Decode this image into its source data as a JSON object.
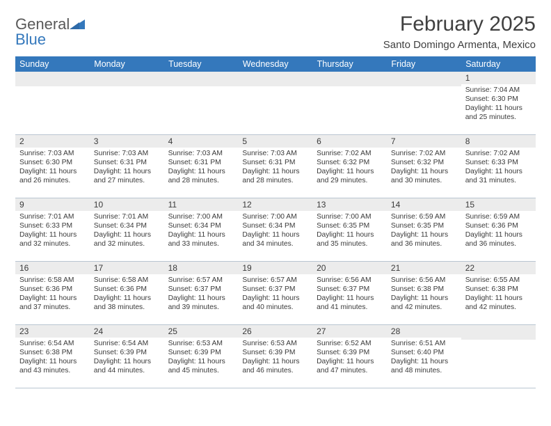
{
  "brand": {
    "word1": "General",
    "word2": "Blue"
  },
  "header": {
    "title": "February 2025",
    "location": "Santo Domingo Armenta, Mexico"
  },
  "colors": {
    "header_bg": "#3478bc",
    "header_fg": "#ffffff",
    "daynum_bg": "#ececec",
    "border": "#b9c5d1",
    "text": "#3a3a3a",
    "brand_gray": "#595959",
    "brand_blue": "#3478bc"
  },
  "weekdays": [
    "Sunday",
    "Monday",
    "Tuesday",
    "Wednesday",
    "Thursday",
    "Friday",
    "Saturday"
  ],
  "grid": [
    [
      null,
      null,
      null,
      null,
      null,
      null,
      {
        "n": "1",
        "sr": "7:04 AM",
        "ss": "6:30 PM",
        "dl": "11 hours and 25 minutes."
      }
    ],
    [
      {
        "n": "2",
        "sr": "7:03 AM",
        "ss": "6:30 PM",
        "dl": "11 hours and 26 minutes."
      },
      {
        "n": "3",
        "sr": "7:03 AM",
        "ss": "6:31 PM",
        "dl": "11 hours and 27 minutes."
      },
      {
        "n": "4",
        "sr": "7:03 AM",
        "ss": "6:31 PM",
        "dl": "11 hours and 28 minutes."
      },
      {
        "n": "5",
        "sr": "7:03 AM",
        "ss": "6:31 PM",
        "dl": "11 hours and 28 minutes."
      },
      {
        "n": "6",
        "sr": "7:02 AM",
        "ss": "6:32 PM",
        "dl": "11 hours and 29 minutes."
      },
      {
        "n": "7",
        "sr": "7:02 AM",
        "ss": "6:32 PM",
        "dl": "11 hours and 30 minutes."
      },
      {
        "n": "8",
        "sr": "7:02 AM",
        "ss": "6:33 PM",
        "dl": "11 hours and 31 minutes."
      }
    ],
    [
      {
        "n": "9",
        "sr": "7:01 AM",
        "ss": "6:33 PM",
        "dl": "11 hours and 32 minutes."
      },
      {
        "n": "10",
        "sr": "7:01 AM",
        "ss": "6:34 PM",
        "dl": "11 hours and 32 minutes."
      },
      {
        "n": "11",
        "sr": "7:00 AM",
        "ss": "6:34 PM",
        "dl": "11 hours and 33 minutes."
      },
      {
        "n": "12",
        "sr": "7:00 AM",
        "ss": "6:34 PM",
        "dl": "11 hours and 34 minutes."
      },
      {
        "n": "13",
        "sr": "7:00 AM",
        "ss": "6:35 PM",
        "dl": "11 hours and 35 minutes."
      },
      {
        "n": "14",
        "sr": "6:59 AM",
        "ss": "6:35 PM",
        "dl": "11 hours and 36 minutes."
      },
      {
        "n": "15",
        "sr": "6:59 AM",
        "ss": "6:36 PM",
        "dl": "11 hours and 36 minutes."
      }
    ],
    [
      {
        "n": "16",
        "sr": "6:58 AM",
        "ss": "6:36 PM",
        "dl": "11 hours and 37 minutes."
      },
      {
        "n": "17",
        "sr": "6:58 AM",
        "ss": "6:36 PM",
        "dl": "11 hours and 38 minutes."
      },
      {
        "n": "18",
        "sr": "6:57 AM",
        "ss": "6:37 PM",
        "dl": "11 hours and 39 minutes."
      },
      {
        "n": "19",
        "sr": "6:57 AM",
        "ss": "6:37 PM",
        "dl": "11 hours and 40 minutes."
      },
      {
        "n": "20",
        "sr": "6:56 AM",
        "ss": "6:37 PM",
        "dl": "11 hours and 41 minutes."
      },
      {
        "n": "21",
        "sr": "6:56 AM",
        "ss": "6:38 PM",
        "dl": "11 hours and 42 minutes."
      },
      {
        "n": "22",
        "sr": "6:55 AM",
        "ss": "6:38 PM",
        "dl": "11 hours and 42 minutes."
      }
    ],
    [
      {
        "n": "23",
        "sr": "6:54 AM",
        "ss": "6:38 PM",
        "dl": "11 hours and 43 minutes."
      },
      {
        "n": "24",
        "sr": "6:54 AM",
        "ss": "6:39 PM",
        "dl": "11 hours and 44 minutes."
      },
      {
        "n": "25",
        "sr": "6:53 AM",
        "ss": "6:39 PM",
        "dl": "11 hours and 45 minutes."
      },
      {
        "n": "26",
        "sr": "6:53 AM",
        "ss": "6:39 PM",
        "dl": "11 hours and 46 minutes."
      },
      {
        "n": "27",
        "sr": "6:52 AM",
        "ss": "6:39 PM",
        "dl": "11 hours and 47 minutes."
      },
      {
        "n": "28",
        "sr": "6:51 AM",
        "ss": "6:40 PM",
        "dl": "11 hours and 48 minutes."
      },
      null
    ]
  ],
  "labels": {
    "sunrise": "Sunrise:",
    "sunset": "Sunset:",
    "daylight": "Daylight:"
  }
}
